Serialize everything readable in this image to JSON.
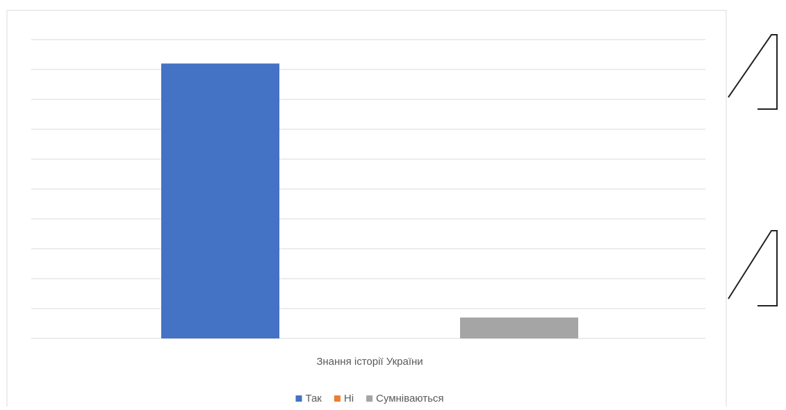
{
  "chart_data": {
    "type": "bar",
    "categories": [
      "Знання історії України"
    ],
    "series": [
      {
        "name": "Так",
        "color": "#4472c4",
        "values": [
          92
        ]
      },
      {
        "name": "Ні",
        "color": "#ed7d31",
        "values": [
          0
        ]
      },
      {
        "name": "Сумніваються",
        "color": "#a5a5a5",
        "values": [
          7
        ]
      }
    ],
    "ylim": [
      0,
      100
    ],
    "yticks": [
      0,
      10,
      20,
      30,
      40,
      50,
      60,
      70,
      80,
      90,
      100
    ],
    "grid": true,
    "legend": "bottom"
  }
}
